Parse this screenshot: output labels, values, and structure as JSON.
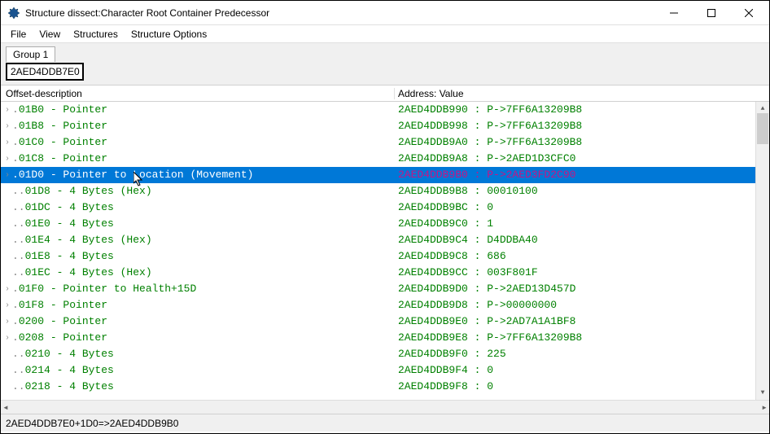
{
  "window": {
    "title": "Structure dissect:Character Root Container Predecessor"
  },
  "menu": {
    "items": [
      "File",
      "View",
      "Structures",
      "Structure Options"
    ]
  },
  "group": {
    "tab_label": "Group 1",
    "address": "2AED4DDB7E0"
  },
  "columns": {
    "left": "Offset-description",
    "right": "Address: Value"
  },
  "rows": [
    {
      "glyph": "›",
      "offset": "01B0 - Pointer",
      "addr": "2AED4DDB990 : P->7FF6A13209B8",
      "expandable": true
    },
    {
      "glyph": "›",
      "offset": "01B8 - Pointer",
      "addr": "2AED4DDB998 : P->7FF6A13209B8",
      "expandable": true
    },
    {
      "glyph": "›",
      "offset": "01C0 - Pointer",
      "addr": "2AED4DDB9A0 : P->7FF6A13209B8",
      "expandable": true
    },
    {
      "glyph": "›",
      "offset": "01C8 - Pointer",
      "addr": "2AED4DDB9A8 : P->2AED1D3CFC0",
      "expandable": true
    },
    {
      "glyph": "›",
      "offset": "01D0 - Pointer to Location (Movement)",
      "addr": "2AED4DDB9B0 : P->2AED3FD2C90",
      "expandable": true,
      "selected": true
    },
    {
      "glyph": "",
      "offset": "01D8 - 4 Bytes (Hex)",
      "addr": "2AED4DDB9B8 : 00010100",
      "expandable": false
    },
    {
      "glyph": "",
      "offset": "01DC - 4 Bytes",
      "addr": "2AED4DDB9BC : 0",
      "expandable": false
    },
    {
      "glyph": "",
      "offset": "01E0 - 4 Bytes",
      "addr": "2AED4DDB9C0 : 1",
      "expandable": false
    },
    {
      "glyph": "",
      "offset": "01E4 - 4 Bytes (Hex)",
      "addr": "2AED4DDB9C4 : D4DDBA40",
      "expandable": false
    },
    {
      "glyph": "",
      "offset": "01E8 - 4 Bytes",
      "addr": "2AED4DDB9C8 : 686",
      "expandable": false
    },
    {
      "glyph": "",
      "offset": "01EC - 4 Bytes (Hex)",
      "addr": "2AED4DDB9CC : 003F801F",
      "expandable": false
    },
    {
      "glyph": "›",
      "offset": "01F0 - Pointer to Health+15D",
      "addr": "2AED4DDB9D0 : P->2AED13D457D",
      "expandable": true
    },
    {
      "glyph": "›",
      "offset": "01F8 - Pointer",
      "addr": "2AED4DDB9D8 : P->00000000",
      "expandable": true
    },
    {
      "glyph": "›",
      "offset": "0200 - Pointer",
      "addr": "2AED4DDB9E0 : P->2AD7A1A1BF8",
      "expandable": true
    },
    {
      "glyph": "›",
      "offset": "0208 - Pointer",
      "addr": "2AED4DDB9E8 : P->7FF6A13209B8",
      "expandable": true
    },
    {
      "glyph": "",
      "offset": "0210 - 4 Bytes",
      "addr": "2AED4DDB9F0 : 225",
      "expandable": false
    },
    {
      "glyph": "",
      "offset": "0214 - 4 Bytes",
      "addr": "2AED4DDB9F4 : 0",
      "expandable": false
    },
    {
      "glyph": "",
      "offset": "0218 - 4 Bytes",
      "addr": "2AED4DDB9F8 : 0",
      "expandable": false
    }
  ],
  "statusbar": {
    "text": "2AED4DDB7E0+1D0=>2AED4DDB9B0"
  },
  "colors": {
    "pointer_green": "#008000",
    "selected_bg": "#0078d7",
    "selected_addr": "#c71585"
  }
}
